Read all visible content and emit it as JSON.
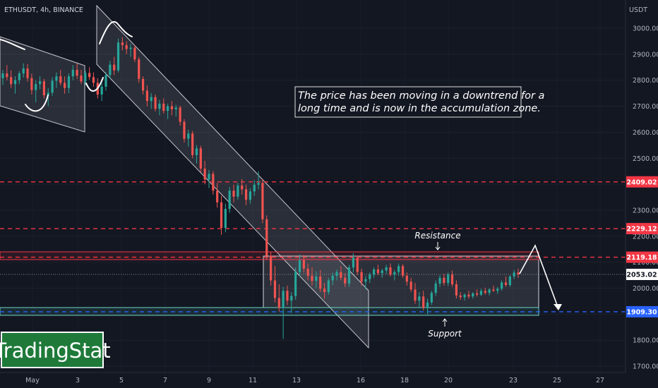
{
  "header": {
    "symbol": "ETHUSDT, 4h, BINANCE"
  },
  "logo": {
    "text": "TradingStat"
  },
  "chart_data": {
    "type": "candlestick",
    "currency_label": "USDT",
    "y_ticks": [
      1700,
      1800,
      1900,
      2000,
      2100,
      2200,
      2300,
      2400,
      2500,
      2600,
      2700,
      2800,
      2900,
      3000
    ],
    "ylim": [
      1690,
      3085
    ],
    "x_tick_labels": [
      "May",
      "3",
      "5",
      "7",
      "9",
      "11",
      "13",
      "16",
      "18",
      "20",
      "23",
      "25",
      "27"
    ],
    "price_levels": [
      {
        "value": 2409.02,
        "label": "2409.02",
        "style": "dashed",
        "color": "#f23645"
      },
      {
        "value": 2229.12,
        "label": "2229.12",
        "style": "dashed",
        "color": "#f23645"
      },
      {
        "value": 2119.18,
        "label": "2119.18",
        "style": "dashed",
        "color": "#f23645"
      },
      {
        "value": 1909.3,
        "label": "1909.30",
        "style": "dashed",
        "color": "#2962ff"
      }
    ],
    "current_price": {
      "value": 2053.02,
      "label": "2053.02"
    },
    "annotations": {
      "note": [
        "The price has been moving in a downtrend for a",
        "long time and is now in the accumulation zone."
      ],
      "resistance": "Resistance",
      "support": "Support"
    },
    "candles": [
      [
        2808,
        2840,
        2782,
        2826
      ],
      [
        2826,
        2858,
        2800,
        2812
      ],
      [
        2812,
        2838,
        2770,
        2785
      ],
      [
        2785,
        2815,
        2748,
        2800
      ],
      [
        2800,
        2835,
        2785,
        2826
      ],
      [
        2826,
        2865,
        2810,
        2845
      ],
      [
        2845,
        2862,
        2795,
        2808
      ],
      [
        2808,
        2825,
        2745,
        2762
      ],
      [
        2762,
        2800,
        2715,
        2785
      ],
      [
        2785,
        2815,
        2765,
        2796
      ],
      [
        2796,
        2805,
        2730,
        2742
      ],
      [
        2742,
        2770,
        2700,
        2752
      ],
      [
        2752,
        2812,
        2740,
        2798
      ],
      [
        2798,
        2830,
        2770,
        2815
      ],
      [
        2815,
        2840,
        2780,
        2790
      ],
      [
        2790,
        2815,
        2748,
        2770
      ],
      [
        2770,
        2826,
        2750,
        2815
      ],
      [
        2815,
        2858,
        2800,
        2840
      ],
      [
        2840,
        2865,
        2805,
        2818
      ],
      [
        2818,
        2840,
        2785,
        2795
      ],
      [
        2795,
        2838,
        2780,
        2828
      ],
      [
        2828,
        2850,
        2802,
        2812
      ],
      [
        2812,
        2830,
        2775,
        2790
      ],
      [
        2790,
        2808,
        2730,
        2745
      ],
      [
        2745,
        2790,
        2720,
        2775
      ],
      [
        2775,
        2830,
        2760,
        2820
      ],
      [
        2820,
        2875,
        2805,
        2860
      ],
      [
        2860,
        2890,
        2820,
        2838
      ],
      [
        2838,
        2960,
        2830,
        2945
      ],
      [
        2945,
        2965,
        2915,
        2935
      ],
      [
        2935,
        2950,
        2900,
        2920
      ],
      [
        2920,
        2940,
        2890,
        2925
      ],
      [
        2925,
        2935,
        2870,
        2880
      ],
      [
        2880,
        2890,
        2790,
        2805
      ],
      [
        2805,
        2815,
        2745,
        2760
      ],
      [
        2760,
        2780,
        2700,
        2720
      ],
      [
        2720,
        2750,
        2690,
        2735
      ],
      [
        2735,
        2745,
        2680,
        2690
      ],
      [
        2690,
        2725,
        2665,
        2710
      ],
      [
        2710,
        2730,
        2672,
        2682
      ],
      [
        2682,
        2710,
        2650,
        2700
      ],
      [
        2700,
        2720,
        2665,
        2688
      ],
      [
        2688,
        2705,
        2660,
        2695
      ],
      [
        2695,
        2702,
        2625,
        2640
      ],
      [
        2640,
        2650,
        2560,
        2575
      ],
      [
        2575,
        2610,
        2545,
        2595
      ],
      [
        2595,
        2605,
        2500,
        2512
      ],
      [
        2512,
        2550,
        2480,
        2538
      ],
      [
        2538,
        2548,
        2445,
        2460
      ],
      [
        2460,
        2490,
        2400,
        2418
      ],
      [
        2418,
        2455,
        2385,
        2440
      ],
      [
        2440,
        2450,
        2360,
        2375
      ],
      [
        2375,
        2405,
        2310,
        2330
      ],
      [
        2330,
        2355,
        2205,
        2232
      ],
      [
        2232,
        2325,
        2215,
        2305
      ],
      [
        2305,
        2390,
        2290,
        2375
      ],
      [
        2375,
        2398,
        2330,
        2352
      ],
      [
        2352,
        2405,
        2340,
        2395
      ],
      [
        2395,
        2420,
        2360,
        2380
      ],
      [
        2380,
        2398,
        2320,
        2340
      ],
      [
        2340,
        2385,
        2325,
        2372
      ],
      [
        2372,
        2415,
        2355,
        2398
      ],
      [
        2398,
        2450,
        2380,
        2405
      ],
      [
        2405,
        2420,
        2250,
        2265
      ],
      [
        2265,
        2280,
        2110,
        2125
      ],
      [
        2125,
        2140,
        2010,
        2030
      ],
      [
        2030,
        2085,
        1945,
        1962
      ],
      [
        1962,
        2015,
        1910,
        1925
      ],
      [
        1925,
        2005,
        1805,
        1990
      ],
      [
        1990,
        2010,
        1935,
        1952
      ],
      [
        1952,
        1985,
        1905,
        1970
      ],
      [
        1970,
        2080,
        1955,
        2062
      ],
      [
        2062,
        2130,
        2045,
        2108
      ],
      [
        2108,
        2128,
        2060,
        2075
      ],
      [
        2075,
        2095,
        2030,
        2048
      ],
      [
        2048,
        2080,
        2010,
        2028
      ],
      [
        2028,
        2065,
        2000,
        2045
      ],
      [
        2045,
        2070,
        1985,
        1998
      ],
      [
        1998,
        2020,
        1960,
        1985
      ],
      [
        1985,
        2040,
        1975,
        2030
      ],
      [
        2030,
        2060,
        2012,
        2048
      ],
      [
        2048,
        2072,
        2030,
        2062
      ],
      [
        2062,
        2085,
        2030,
        2040
      ],
      [
        2040,
        2058,
        2005,
        2018
      ],
      [
        2018,
        2090,
        2005,
        2080
      ],
      [
        2080,
        2135,
        2060,
        2118
      ],
      [
        2118,
        2125,
        2050,
        2062
      ],
      [
        2062,
        2075,
        2010,
        2025
      ],
      [
        2025,
        2048,
        1995,
        2035
      ],
      [
        2035,
        2060,
        2020,
        2052
      ],
      [
        2052,
        2080,
        2040,
        2072
      ],
      [
        2072,
        2090,
        2050,
        2058
      ],
      [
        2058,
        2075,
        2040,
        2068
      ],
      [
        2068,
        2090,
        2055,
        2080
      ],
      [
        2080,
        2095,
        2045,
        2052
      ],
      [
        2052,
        2070,
        2030,
        2062
      ],
      [
        2062,
        2095,
        2048,
        2085
      ],
      [
        2085,
        2092,
        2040,
        2048
      ],
      [
        2048,
        2060,
        2010,
        2025
      ],
      [
        2025,
        2040,
        1985,
        1995
      ],
      [
        1995,
        2020,
        1940,
        1952
      ],
      [
        1952,
        1985,
        1925,
        1968
      ],
      [
        1968,
        1990,
        1915,
        1925
      ],
      [
        1925,
        1960,
        1900,
        1945
      ],
      [
        1945,
        1990,
        1935,
        1982
      ],
      [
        1982,
        2030,
        1970,
        2018
      ],
      [
        2018,
        2050,
        2005,
        2040
      ],
      [
        2040,
        2055,
        2010,
        2020
      ],
      [
        2020,
        2060,
        2008,
        2052
      ],
      [
        2052,
        2068,
        2005,
        2015
      ],
      [
        2015,
        2030,
        1960,
        1972
      ],
      [
        1972,
        1985,
        1955,
        1965
      ],
      [
        1965,
        1980,
        1952,
        1975
      ],
      [
        1975,
        1990,
        1960,
        1968
      ],
      [
        1968,
        1985,
        1960,
        1980
      ],
      [
        1980,
        1995,
        1968,
        1975
      ],
      [
        1975,
        1998,
        1970,
        1990
      ],
      [
        1990,
        2002,
        1975,
        1982
      ],
      [
        1982,
        2000,
        1972,
        1995
      ],
      [
        1995,
        2010,
        1985,
        1990
      ],
      [
        1990,
        2005,
        1978,
        1998
      ],
      [
        1998,
        2030,
        1990,
        2022
      ],
      [
        2022,
        2045,
        2005,
        2012
      ],
      [
        2012,
        2050,
        2005,
        2045
      ],
      [
        2045,
        2070,
        2035,
        2060
      ],
      [
        2060,
        2075,
        2040,
        2053
      ]
    ]
  }
}
